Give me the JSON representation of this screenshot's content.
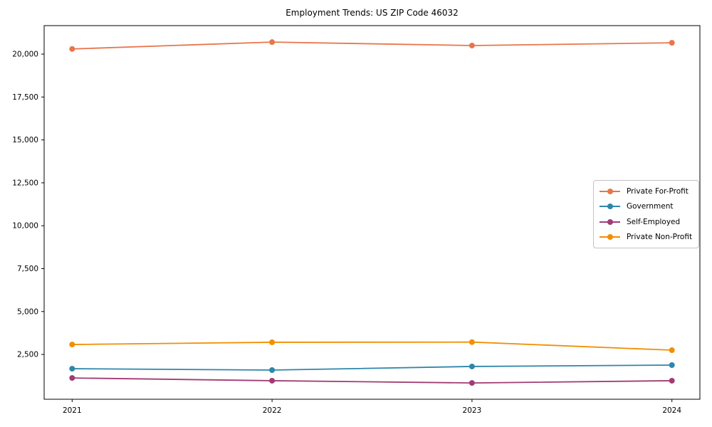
{
  "chart_data": {
    "type": "line",
    "title": "Employment Trends: US ZIP Code 46032",
    "x": [
      2021,
      2022,
      2023,
      2024
    ],
    "xtick_labels": [
      "2021",
      "2022",
      "2023",
      "2024"
    ],
    "yticks": [
      2500,
      5000,
      7500,
      10000,
      12500,
      15000,
      17500,
      20000
    ],
    "ytick_labels": [
      "2,500",
      "5,000",
      "7,500",
      "10,000",
      "12,500",
      "15,000",
      "17,500",
      "20,000"
    ],
    "xlim": [
      2020.86,
      2024.14
    ],
    "ylim": [
      -110,
      21660
    ],
    "xlabel": "",
    "ylabel": "",
    "grid": false,
    "legend_position": "center right",
    "series": [
      {
        "id": "private-for-profit",
        "name": "Private For-Profit",
        "color": "#e8764b",
        "values": [
          20300,
          20700,
          20500,
          20660
        ]
      },
      {
        "id": "government",
        "name": "Government",
        "color": "#2e86ab",
        "values": [
          1670,
          1590,
          1800,
          1880
        ]
      },
      {
        "id": "self-employed",
        "name": "Self-Employed",
        "color": "#a23b72",
        "values": [
          1130,
          970,
          840,
          970
        ]
      },
      {
        "id": "private-non-profit",
        "name": "Private Non-Profit",
        "color": "#f18f01",
        "values": [
          3080,
          3210,
          3220,
          2750
        ]
      }
    ]
  }
}
